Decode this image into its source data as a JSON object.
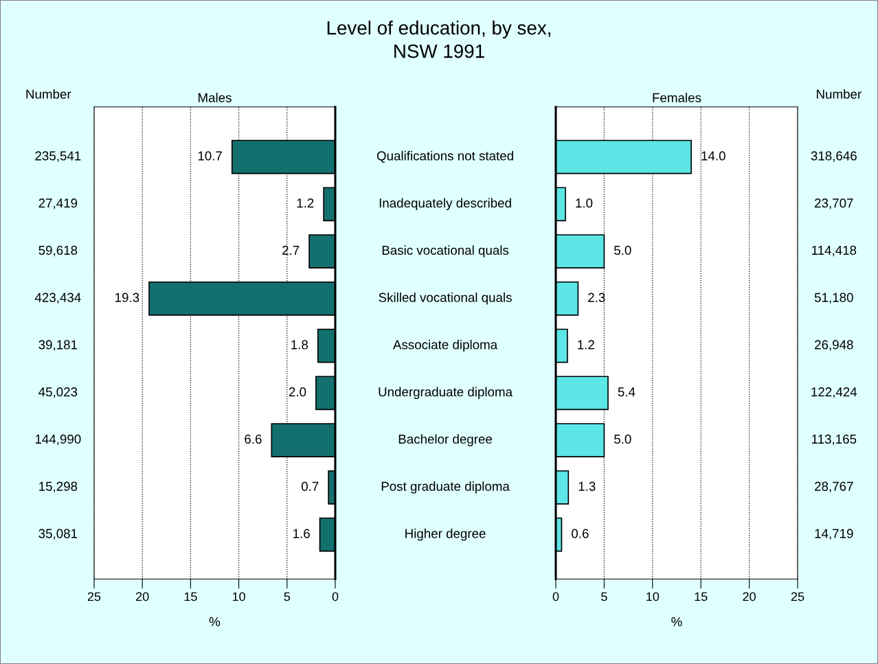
{
  "chart_data": [
    {
      "type": "bar",
      "orientation": "horizontal",
      "title": "Level of education, by sex,\nNSW 1991",
      "subtitle": "Males",
      "xlabel": "%",
      "categories": [
        "Qualifications not stated",
        "Inadequately described",
        "Basic vocational quals",
        "Skilled vocational quals",
        "Associate diploma",
        "Undergraduate diploma",
        "Bachelor degree",
        "Post graduate diploma",
        "Higher degree"
      ],
      "values": [
        10.7,
        1.2,
        2.7,
        19.3,
        1.8,
        2.0,
        6.6,
        0.7,
        1.6
      ],
      "color": "#13706e",
      "value_labels": [
        "10.7",
        "1.2",
        "2.7",
        "19.3",
        "1.8",
        "2.0",
        "6.6",
        "0.7",
        "1.6"
      ],
      "xlim": [
        25,
        0
      ],
      "xticks": [
        25,
        20,
        15,
        10,
        5,
        0
      ],
      "grid": "x",
      "annotations": [
        "Number",
        "235,541",
        "27,419",
        "59,618",
        "423,434",
        "39,181",
        "45,023",
        "144,990",
        "15,298",
        "35,081"
      ]
    },
    {
      "type": "bar",
      "orientation": "horizontal",
      "subtitle": "Females",
      "xlabel": "%",
      "categories": [
        null,
        null,
        null,
        null,
        null,
        null,
        null,
        null,
        null
      ],
      "values": [
        14.0,
        1.0,
        5.0,
        2.3,
        1.2,
        5.4,
        5.0,
        1.3,
        0.6
      ],
      "color": "#5ce6e6",
      "value_labels": [
        "14.0",
        "1.0",
        "5.0",
        "2.3",
        "1.2",
        "5.4",
        "5.0",
        "1.3",
        "0.6"
      ],
      "xlim": [
        0,
        25
      ],
      "xticks": [
        0,
        5,
        10,
        15,
        20,
        25
      ],
      "grid": "x",
      "tick_labels": "x",
      "annotations": [
        "Number",
        "318,646",
        "23,707",
        "114,418",
        "51,180",
        "26,948",
        "122,424",
        "113,165",
        "28,767",
        "14,719"
      ]
    }
  ]
}
